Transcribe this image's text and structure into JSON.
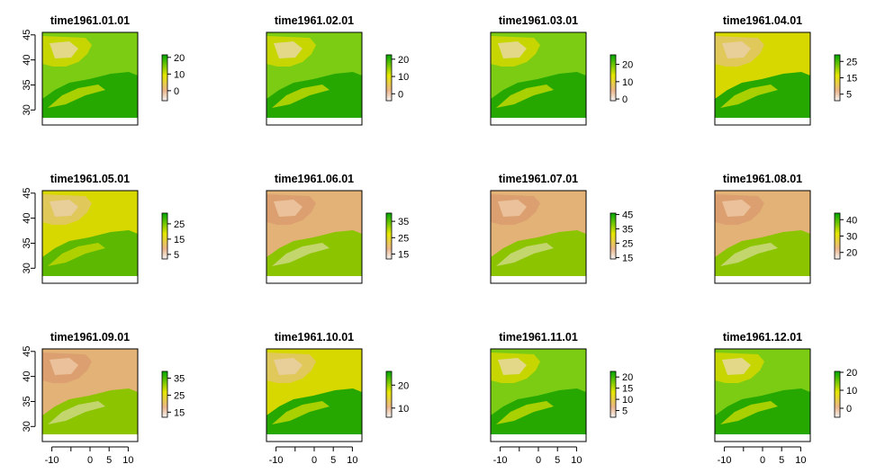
{
  "chart_data": [
    {
      "type": "heatmap",
      "title": "time1961.01.01",
      "legend_ticks": [
        0,
        10,
        20
      ],
      "zlim": [
        -6,
        21.5
      ],
      "palette": "terrain"
    },
    {
      "type": "heatmap",
      "title": "time1961.02.01",
      "legend_ticks": [
        0,
        10,
        20
      ],
      "zlim": [
        -4,
        22.5
      ],
      "palette": "terrain"
    },
    {
      "type": "heatmap",
      "title": "time1961.03.01",
      "legend_ticks": [
        0,
        10,
        20
      ],
      "zlim": [
        -1,
        25.5
      ],
      "palette": "terrain"
    },
    {
      "type": "heatmap",
      "title": "time1961.04.01",
      "legend_ticks": [
        5,
        15,
        25
      ],
      "zlim": [
        1,
        29
      ],
      "palette": "terrain"
    },
    {
      "type": "heatmap",
      "title": "time1961.05.01",
      "legend_ticks": [
        5,
        15,
        25
      ],
      "zlim": [
        2,
        32
      ],
      "palette": "terrain"
    },
    {
      "type": "heatmap",
      "title": "time1961.06.01",
      "legend_ticks": [
        15,
        25,
        35
      ],
      "zlim": [
        12,
        40
      ],
      "palette": "terrain"
    },
    {
      "type": "heatmap",
      "title": "time1961.07.01",
      "legend_ticks": [
        15,
        25,
        35,
        45
      ],
      "zlim": [
        14,
        46
      ],
      "palette": "terrain"
    },
    {
      "type": "heatmap",
      "title": "time1961.08.01",
      "legend_ticks": [
        20,
        30,
        40
      ],
      "zlim": [
        16,
        44
      ],
      "palette": "terrain"
    },
    {
      "type": "heatmap",
      "title": "time1961.09.01",
      "legend_ticks": [
        15,
        25,
        35
      ],
      "zlim": [
        12,
        39
      ],
      "palette": "terrain"
    },
    {
      "type": "heatmap",
      "title": "time1961.10.01",
      "legend_ticks": [
        10,
        20
      ],
      "zlim": [
        6,
        26
      ],
      "palette": "terrain"
    },
    {
      "type": "heatmap",
      "title": "time1961.11.01",
      "legend_ticks": [
        5,
        10,
        15,
        20
      ],
      "zlim": [
        2,
        22.5
      ],
      "palette": "terrain"
    },
    {
      "type": "heatmap",
      "title": "time1961.12.01",
      "legend_ticks": [
        0,
        10,
        20
      ],
      "zlim": [
        -5,
        20.5
      ],
      "palette": "terrain"
    }
  ],
  "axes": {
    "y_ticks": [
      30,
      35,
      40,
      45
    ],
    "x_ticks": [
      -10,
      0,
      5,
      10
    ],
    "ylim": [
      27,
      45.5
    ],
    "xlim": [
      -12.5,
      12.5
    ]
  },
  "colors": {
    "green": "#00a600",
    "yellow": "#e6e600",
    "tan": "#ecb176",
    "pink": "#f2f2f2"
  }
}
